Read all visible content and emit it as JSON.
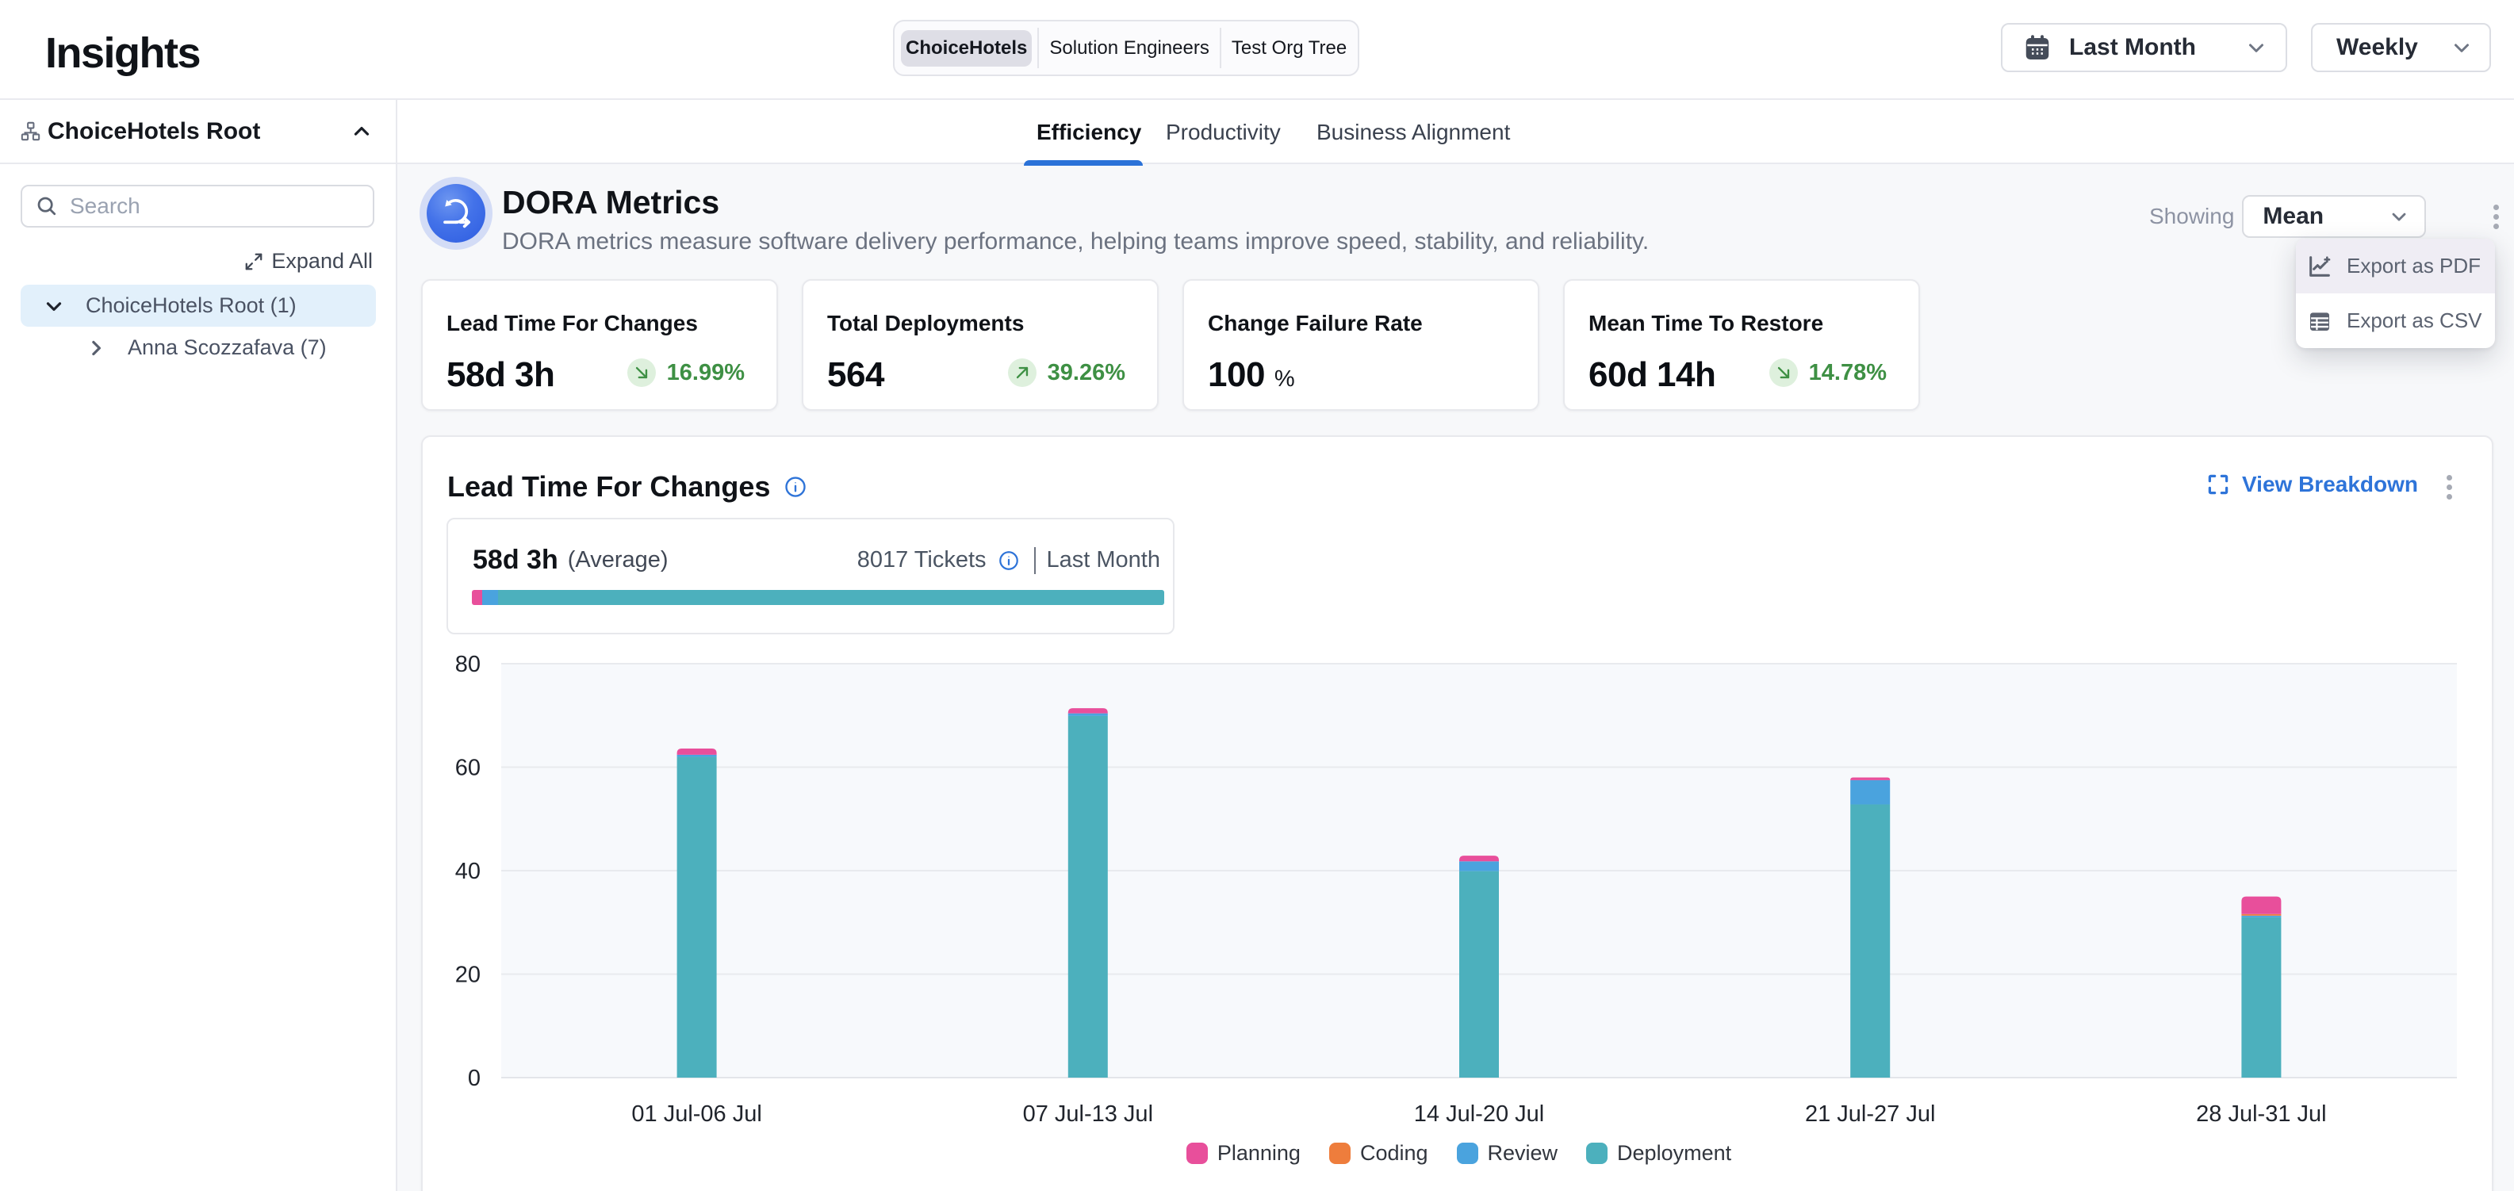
{
  "app": {
    "title": "Insights"
  },
  "header": {
    "org_tabs": [
      {
        "label": "ChoiceHotels",
        "active": true
      },
      {
        "label": "Solution Engineers",
        "active": false
      },
      {
        "label": "Test Org Tree",
        "active": false
      }
    ],
    "date_range_value": "Last Month",
    "granularity_value": "Weekly"
  },
  "sidebar": {
    "title": "ChoiceHotels Root",
    "search_placeholder": "Search",
    "expand_all_label": "Expand All",
    "tree": [
      {
        "label": "ChoiceHotels Root (1)",
        "selected": true,
        "expanded": true
      },
      {
        "label": "Anna Scozzafava (7)",
        "selected": false,
        "expanded": false
      }
    ]
  },
  "tabs": [
    {
      "label": "Efficiency",
      "active": true
    },
    {
      "label": "Productivity",
      "active": false
    },
    {
      "label": "Business Alignment",
      "active": false
    }
  ],
  "dora": {
    "title": "DORA Metrics",
    "description": "DORA metrics measure software delivery performance, helping teams improve speed, stability, and reliability.",
    "showing_label": "Showing",
    "showing_value": "Mean"
  },
  "export_menu": {
    "items": [
      {
        "label": "Export as PDF",
        "icon": "chart-line-icon",
        "hovered": true
      },
      {
        "label": "Export as CSV",
        "icon": "table-icon",
        "hovered": false
      }
    ]
  },
  "metric_cards": [
    {
      "title": "Lead Time For Changes",
      "value": "58d 3h",
      "delta": "16.99%",
      "direction": "down"
    },
    {
      "title": "Total Deployments",
      "value": "564",
      "delta": "39.26%",
      "direction": "up"
    },
    {
      "title": "Change Failure Rate",
      "value": "100",
      "unit": "%",
      "delta": "",
      "direction": ""
    },
    {
      "title": "Mean Time To Restore",
      "value": "60d 14h",
      "delta": "14.78%",
      "direction": "down"
    }
  ],
  "chart_card": {
    "title": "Lead Time For Changes",
    "view_breakdown_label": "View Breakdown",
    "summary": {
      "value": "58d 3h",
      "qualifier": "(Average)",
      "tickets": "8017 Tickets",
      "period": "Last Month",
      "bar_segments": [
        {
          "name": "Planning",
          "pct": 1.5,
          "color": "#e84f9b"
        },
        {
          "name": "Review",
          "pct": 2.3,
          "color": "#4aa3de"
        },
        {
          "name": "Deployment",
          "pct": 96.2,
          "color": "#4cb0bd"
        }
      ]
    }
  },
  "chart_data": {
    "type": "bar",
    "stacked": true,
    "title": "Lead Time For Changes",
    "categories": [
      "01 Jul-06 Jul",
      "07 Jul-13 Jul",
      "14 Jul-20 Jul",
      "21 Jul-27 Jul",
      "28 Jul-31 Jul"
    ],
    "series": [
      {
        "name": "Planning",
        "color": "#e84f9b",
        "values": [
          1.2,
          1.0,
          1.1,
          0.5,
          3.4
        ]
      },
      {
        "name": "Coding",
        "color": "#ee7d3c",
        "values": [
          0,
          0,
          0,
          0,
          0.3
        ]
      },
      {
        "name": "Review",
        "color": "#4aa3de",
        "values": [
          0.4,
          0.5,
          1.9,
          4.7,
          0.3
        ]
      },
      {
        "name": "Deployment",
        "color": "#4cb0bd",
        "values": [
          62.0,
          69.9,
          39.9,
          52.8,
          31.0
        ]
      }
    ],
    "stack_order_bottom_to_top": [
      "Deployment",
      "Review",
      "Coding",
      "Planning"
    ],
    "ylim": [
      0,
      80
    ],
    "yticks": [
      0,
      20,
      40,
      60,
      80
    ],
    "grid": true,
    "legend_position": "bottom",
    "plot_bg": "#f7f9fc"
  },
  "colors": {
    "accent_blue": "#2b72d8",
    "link_blue": "#2e74d9",
    "green_text": "#3e9044",
    "green_bg": "#def0dd",
    "main_bg": "#f7f8fa",
    "selected_tree_bg": "#e2f0fb",
    "active_segment_bg": "#e2e2ea",
    "menu_hover_bg": "#efedf4"
  }
}
